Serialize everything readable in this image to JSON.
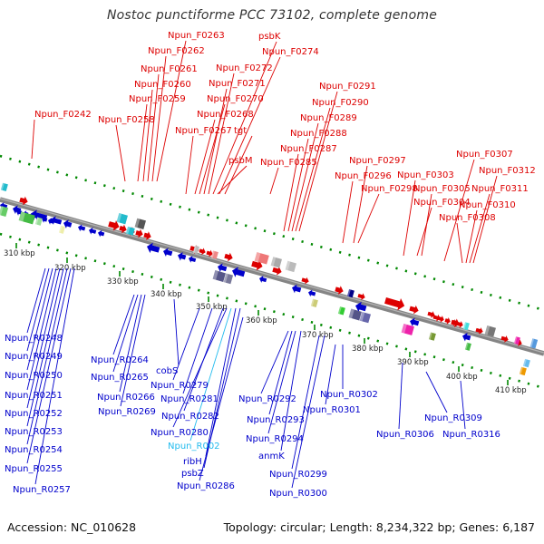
{
  "title": "Nostoc punctiforme PCC 73102, complete genome",
  "footer": {
    "accession": "Accession: NC_010628",
    "summary": "Topology: circular; Length: 8,234,322 bp; Genes: 6,187"
  },
  "colors": {
    "forward": "#dd0000",
    "reverse": "#0000cc",
    "special": "#22bbee",
    "backbone": "#808080",
    "tick": "#008800"
  },
  "scale_ticks": [
    {
      "label": "310 kbp",
      "kbp": 310
    },
    {
      "label": "320 kbp",
      "kbp": 320
    },
    {
      "label": "330 kbp",
      "kbp": 330
    },
    {
      "label": "340 kbp",
      "kbp": 340
    },
    {
      "label": "350 kbp",
      "kbp": 350
    },
    {
      "label": "360 kbp",
      "kbp": 360
    },
    {
      "label": "370 kbp",
      "kbp": 370
    },
    {
      "label": "380 kbp",
      "kbp": 380
    },
    {
      "label": "390 kbp",
      "kbp": 390
    },
    {
      "label": "400 kbp",
      "kbp": 400
    },
    {
      "label": "410 kbp",
      "kbp": 410
    }
  ],
  "forward_labels": [
    "Npun_F0242",
    "Npun_F0258",
    "Npun_F0259",
    "Npun_F0260",
    "Npun_F0261",
    "Npun_F0262",
    "Npun_F0263",
    "Npun_F0267",
    "Npun_F0268",
    "Npun_F0270",
    "Npun_F0271",
    "Npun_F0272",
    "psbK",
    "Npun_F0274",
    "tgt",
    "psbM",
    "Npun_F0285",
    "Npun_F0287",
    "Npun_F0288",
    "Npun_F0289",
    "Npun_F0290",
    "Npun_F0291",
    "Npun_F0296",
    "Npun_F0297",
    "Npun_F0298",
    "Npun_F0303",
    "Npun_F0304",
    "Npun_F0305",
    "Npun_F0307",
    "Npun_F0308",
    "Npun_F0310",
    "Npun_F0311",
    "Npun_F0312"
  ],
  "reverse_labels": [
    "Npun_R0248",
    "Npun_R0249",
    "Npun_R0250",
    "Npun_R0251",
    "Npun_R0252",
    "Npun_R0253",
    "Npun_R0254",
    "Npun_R0255",
    "Npun_R0257",
    "Npun_R0264",
    "Npun_R0265",
    "cobS",
    "Npun_R0266",
    "Npun_R0269",
    "Npun_R0279",
    "Npun_R0281",
    "Npun_R0282",
    "Npun_R0280",
    "Npun_R002",
    "ribH",
    "psbZ",
    "Npun_R0286",
    "Npun_R0292",
    "Npun_R0293",
    "Npun_R0294",
    "anmK",
    "Npun_R0299",
    "Npun_R0300",
    "Npun_R0302",
    "Npun_R0301",
    "Npun_R0306",
    "Npun_R0309",
    "Npun_R0316"
  ]
}
